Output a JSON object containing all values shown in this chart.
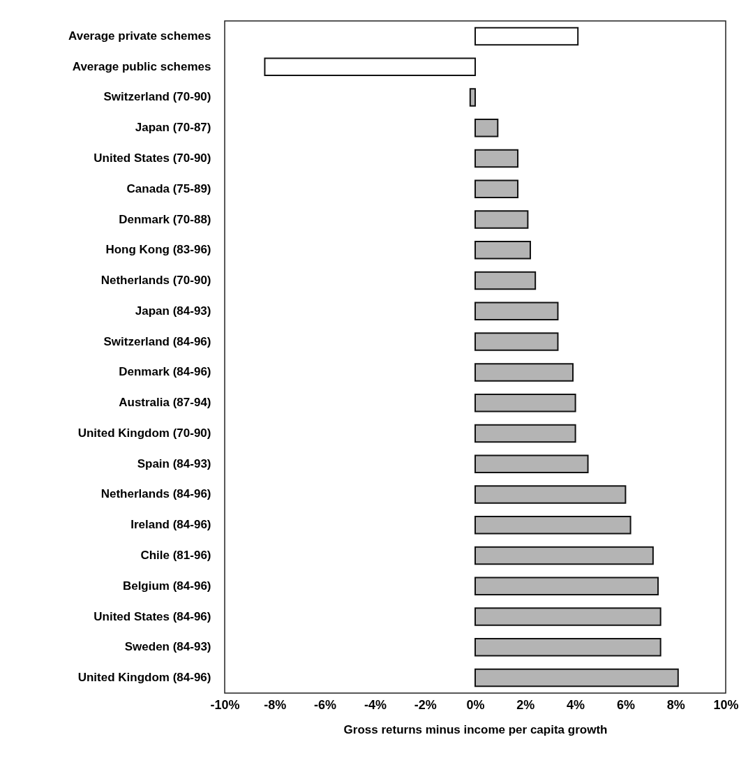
{
  "chart_data": {
    "type": "bar",
    "orientation": "horizontal",
    "xlabel": "Gross returns minus income per capita growth",
    "categories": [
      "Average private schemes",
      "Average public schemes",
      "Switzerland (70-90)",
      "Japan (70-87)",
      "United States (70-90)",
      "Canada (75-89)",
      "Denmark (70-88)",
      "Hong Kong (83-96)",
      "Netherlands (70-90)",
      "Japan (84-93)",
      "Switzerland (84-96)",
      "Denmark (84-96)",
      "Australia (87-94)",
      "United Kingdom (70-90)",
      "Spain (84-93)",
      "Netherlands (84-96)",
      "Ireland (84-96)",
      "Chile (81-96)",
      "Belgium (84-96)",
      "United States (84-96)",
      "Sweden (84-93)",
      "United Kingdom (84-96)"
    ],
    "values": [
      4.1,
      -8.4,
      -0.2,
      0.9,
      1.7,
      1.7,
      2.1,
      2.2,
      2.4,
      3.3,
      3.3,
      3.9,
      4.0,
      4.0,
      4.5,
      6.0,
      6.2,
      7.1,
      7.3,
      7.4,
      7.4,
      8.1
    ],
    "colors": [
      "#ffffff",
      "#ffffff",
      "#b4b4b4",
      "#b4b4b4",
      "#b4b4b4",
      "#b4b4b4",
      "#b4b4b4",
      "#b4b4b4",
      "#b4b4b4",
      "#b4b4b4",
      "#b4b4b4",
      "#b4b4b4",
      "#b4b4b4",
      "#b4b4b4",
      "#b4b4b4",
      "#b4b4b4",
      "#b4b4b4",
      "#b4b4b4",
      "#b4b4b4",
      "#b4b4b4",
      "#b4b4b4",
      "#b4b4b4"
    ],
    "xlim": [
      -10,
      10
    ],
    "xticks": [
      {
        "value": -10,
        "label": "-10%"
      },
      {
        "value": -8,
        "label": "-8%"
      },
      {
        "value": -6,
        "label": "-6%"
      },
      {
        "value": -4,
        "label": "-4%"
      },
      {
        "value": -2,
        "label": "-2%"
      },
      {
        "value": 0,
        "label": "0%"
      },
      {
        "value": 2,
        "label": "2%"
      },
      {
        "value": 4,
        "label": "4%"
      },
      {
        "value": 6,
        "label": "6%"
      },
      {
        "value": 8,
        "label": "8%"
      },
      {
        "value": 10,
        "label": "10%"
      }
    ],
    "grid": false,
    "legend": false
  }
}
